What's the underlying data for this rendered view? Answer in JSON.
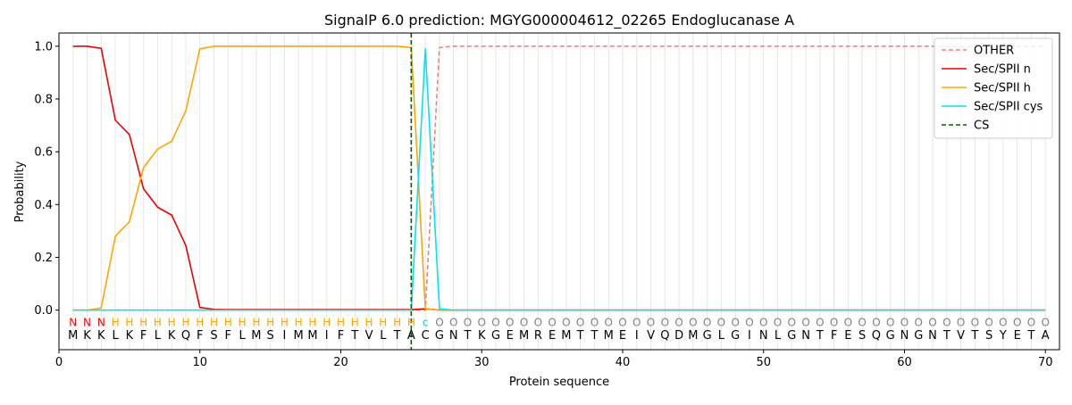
{
  "chart_data": {
    "type": "line",
    "title": "SignalP 6.0 prediction: MGYG000004612_02265 Endoglucanase A",
    "xlabel": "Protein sequence",
    "ylabel": "Probability",
    "xlim": [
      0,
      71
    ],
    "ylim": [
      -0.15,
      1.05
    ],
    "x_ticks": [
      0,
      10,
      20,
      30,
      40,
      50,
      60,
      70
    ],
    "y_ticks": [
      0.0,
      0.2,
      0.4,
      0.6,
      0.8,
      1.0
    ],
    "x_tick_labels": [
      "0",
      "10",
      "20",
      "30",
      "40",
      "50",
      "60",
      "70"
    ],
    "y_tick_labels": [
      "0.0",
      "0.2",
      "0.4",
      "0.6",
      "0.8",
      "1.0"
    ],
    "vertical_gridlines": "every residue",
    "legend_position": "top-right",
    "sequence": "MKKLKFLKQFSFLMSIMMIFTVLTACGNTKGEMREMTTMEIVQDMGLGINLGNTFESQGNGNTVTSYETA",
    "labels": "NNNHHHHHHHHHHHHHHHHHHHHHHcOOOOOOOOOOOOOOOOOOOOOOOOOOOOOOOOOOOOOOOOOOOO",
    "label_colors": {
      "N": "#ff0000",
      "H": "#ffa500",
      "c": "#00d2d2",
      "O": "#808080"
    },
    "cleavage_site": 25,
    "series": [
      {
        "name": "OTHER",
        "color": "#f08080",
        "style": "dashed",
        "values": [
          0,
          0,
          0,
          0,
          0,
          0,
          0,
          0,
          0,
          0,
          0,
          0,
          0,
          0,
          0,
          0,
          0,
          0,
          0,
          0,
          0,
          0,
          0,
          0,
          0,
          0,
          0.995,
          1,
          1,
          1,
          1,
          1,
          1,
          1,
          1,
          1,
          1,
          1,
          1,
          1,
          1,
          1,
          1,
          1,
          1,
          1,
          1,
          1,
          1,
          1,
          1,
          1,
          1,
          1,
          1,
          1,
          1,
          1,
          1,
          1,
          1,
          1,
          1,
          1,
          1,
          1,
          1,
          1,
          1,
          1
        ]
      },
      {
        "name": "Sec/SPII n",
        "color": "#ee0000",
        "style": "solid",
        "values": [
          1.0,
          1.0,
          0.992,
          0.72,
          0.665,
          0.46,
          0.39,
          0.36,
          0.245,
          0.01,
          0.003,
          0.002,
          0.002,
          0.002,
          0.002,
          0.002,
          0.002,
          0.002,
          0.002,
          0.002,
          0.002,
          0.002,
          0.002,
          0.002,
          0.002,
          0.005,
          0,
          0,
          0,
          0,
          0,
          0,
          0,
          0,
          0,
          0,
          0,
          0,
          0,
          0,
          0,
          0,
          0,
          0,
          0,
          0,
          0,
          0,
          0,
          0,
          0,
          0,
          0,
          0,
          0,
          0,
          0,
          0,
          0,
          0,
          0,
          0,
          0,
          0,
          0,
          0,
          0,
          0,
          0,
          0
        ]
      },
      {
        "name": "Sec/SPII h",
        "color": "#ffa500",
        "style": "solid",
        "values": [
          0,
          0,
          0.008,
          0.28,
          0.335,
          0.54,
          0.61,
          0.64,
          0.755,
          0.99,
          1.0,
          1.0,
          1.0,
          1.0,
          1.0,
          1.0,
          1.0,
          1.0,
          1.0,
          1.0,
          1.0,
          1.0,
          1.0,
          1.0,
          0.995,
          0.005,
          0,
          0,
          0,
          0,
          0,
          0,
          0,
          0,
          0,
          0,
          0,
          0,
          0,
          0,
          0,
          0,
          0,
          0,
          0,
          0,
          0,
          0,
          0,
          0,
          0,
          0,
          0,
          0,
          0,
          0,
          0,
          0,
          0,
          0,
          0,
          0,
          0,
          0,
          0,
          0,
          0,
          0,
          0,
          0
        ]
      },
      {
        "name": "Sec/SPII cys",
        "color": "#00e5ee",
        "style": "solid",
        "values": [
          0,
          0,
          0,
          0,
          0,
          0,
          0,
          0,
          0,
          0,
          0,
          0,
          0,
          0,
          0,
          0,
          0,
          0,
          0,
          0,
          0,
          0,
          0,
          0,
          0,
          0.99,
          0.005,
          0,
          0,
          0,
          0,
          0,
          0,
          0,
          0,
          0,
          0,
          0,
          0,
          0,
          0,
          0,
          0,
          0,
          0,
          0,
          0,
          0,
          0,
          0,
          0,
          0,
          0,
          0,
          0,
          0,
          0,
          0,
          0,
          0,
          0,
          0,
          0,
          0,
          0,
          0,
          0,
          0,
          0,
          0
        ]
      },
      {
        "name": "CS",
        "color": "#006400",
        "style": "dashed",
        "x": 25
      }
    ]
  }
}
